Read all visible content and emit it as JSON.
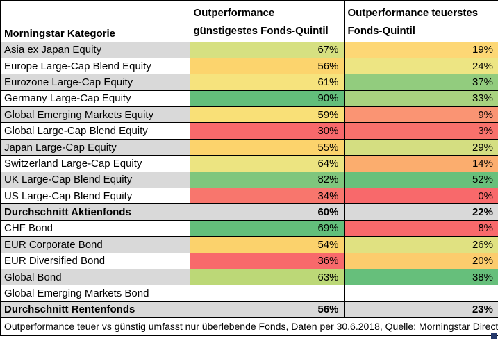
{
  "table": {
    "headers": {
      "category": "Morningstar Kategorie",
      "col2_line1": "Outperformance",
      "col2_line2": "günstigestes Fonds-Quintil",
      "col3_line1": "Outperformance teuerstes",
      "col3_line2": "Fonds-Quintil"
    },
    "rows": [
      {
        "category": "Asia ex Japan Equity",
        "cat_bg": "#D9D9D9",
        "cheap": "67%",
        "cheap_bg": "#D6E081",
        "expensive": "19%",
        "expensive_bg": "#FDD775",
        "bold": false
      },
      {
        "category": "Europe Large-Cap Blend Equity",
        "cat_bg": "#FFFFFF",
        "cheap": "56%",
        "cheap_bg": "#FCD46D",
        "expensive": "24%",
        "expensive_bg": "#EDE583",
        "bold": false
      },
      {
        "category": "Eurozone Large-Cap Equity",
        "cat_bg": "#D9D9D9",
        "cheap": "61%",
        "cheap_bg": "#F6E37D",
        "expensive": "37%",
        "expensive_bg": "#92CC7E",
        "bold": false
      },
      {
        "category": "Germany Large-Cap Equity",
        "cat_bg": "#FFFFFF",
        "cheap": "90%",
        "cheap_bg": "#63BE7B",
        "expensive": "33%",
        "expensive_bg": "#A8D27F",
        "bold": false
      },
      {
        "category": "Global Emerging Markets Equity",
        "cat_bg": "#D9D9D9",
        "cheap": "59%",
        "cheap_bg": "#F9E077",
        "expensive": "9%",
        "expensive_bg": "#FA9473",
        "bold": false
      },
      {
        "category": "Global Large-Cap Blend Equity",
        "cat_bg": "#FFFFFF",
        "cheap": "30%",
        "cheap_bg": "#F8696B",
        "expensive": "3%",
        "expensive_bg": "#F8716C",
        "bold": false
      },
      {
        "category": "Japan Large-Cap Equity",
        "cat_bg": "#D9D9D9",
        "cheap": "55%",
        "cheap_bg": "#FCD36C",
        "expensive": "29%",
        "expensive_bg": "#D4DE81",
        "bold": false
      },
      {
        "category": "Switzerland Large-Cap Equity",
        "cat_bg": "#FFFFFF",
        "cheap": "64%",
        "cheap_bg": "#ECE481",
        "expensive": "14%",
        "expensive_bg": "#FBAD6E",
        "bold": false
      },
      {
        "category": "UK Large-Cap Blend Equity",
        "cat_bg": "#D9D9D9",
        "cheap": "82%",
        "cheap_bg": "#7FC67D",
        "expensive": "52%",
        "expensive_bg": "#68C07B",
        "bold": false
      },
      {
        "category": "US Large-Cap Blend Equity",
        "cat_bg": "#FFFFFF",
        "cheap": "34%",
        "cheap_bg": "#F8766D",
        "expensive": "0%",
        "expensive_bg": "#F8696B",
        "bold": false
      },
      {
        "category": "Durchschnitt Aktienfonds",
        "cat_bg": "#D9D9D9",
        "cheap": "60%",
        "cheap_bg": "#D9D9D9",
        "expensive": "22%",
        "expensive_bg": "#D9D9D9",
        "bold": true
      },
      {
        "category": "CHF Bond",
        "cat_bg": "#FFFFFF",
        "cheap": "69%",
        "cheap_bg": "#63BE7B",
        "expensive": "8%",
        "expensive_bg": "#F8696B",
        "bold": false
      },
      {
        "category": "EUR Corporate Bond",
        "cat_bg": "#D9D9D9",
        "cheap": "54%",
        "cheap_bg": "#FBD26C",
        "expensive": "26%",
        "expensive_bg": "#E0E181",
        "bold": false
      },
      {
        "category": "EUR Diversified Bond",
        "cat_bg": "#FFFFFF",
        "cheap": "36%",
        "cheap_bg": "#F8696B",
        "expensive": "20%",
        "expensive_bg": "#FCCC6D",
        "bold": false
      },
      {
        "category": "Global Bond",
        "cat_bg": "#D9D9D9",
        "cheap": "63%",
        "cheap_bg": "#BCD877",
        "expensive": "38%",
        "expensive_bg": "#66BF7B",
        "bold": false
      },
      {
        "category": "Global Emerging Markets Bond",
        "cat_bg": "#FFFFFF",
        "cheap": "",
        "cheap_bg": "#FFFFFF",
        "expensive": "",
        "expensive_bg": "#FFFFFF",
        "bold": false
      },
      {
        "category": "Durchschnitt Rentenfonds",
        "cat_bg": "#D9D9D9",
        "cheap": "56%",
        "cheap_bg": "#D9D9D9",
        "expensive": "23%",
        "expensive_bg": "#D9D9D9",
        "bold": true
      }
    ],
    "footnote": "Outperformance teuer vs günstig umfasst nur überlebende Fonds, Daten per 30.6.2018, Quelle: Morningstar Direct"
  },
  "colors": {
    "grid": "#000000",
    "row_stripe_gray": "#D9D9D9",
    "scale_green": "#63BE7B",
    "scale_yellow": "#FFEB84",
    "scale_red": "#F8696B",
    "corner_marker_blue": "#24386B"
  }
}
